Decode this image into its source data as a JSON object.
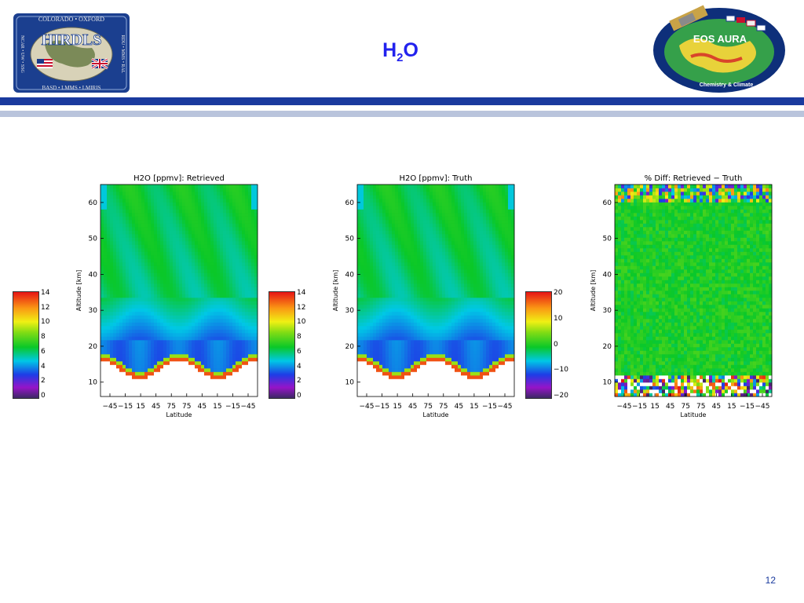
{
  "slide": {
    "title_main": "H",
    "title_sub": "2",
    "title_end": "O",
    "page_number": "12"
  },
  "logos": {
    "hirdls": {
      "name": "HIRDLS",
      "top_text": "COLORADO • OXFORD",
      "bottom_text": "BASD • LMMS • LMIRIS",
      "left_text": "NCAR • UW • SSG",
      "right_text": "RDU • MMS • RAL"
    },
    "aura": {
      "name": "EOS AURA",
      "subtitle": "Chemistry & Climate"
    }
  },
  "colors": {
    "rule_dark": "#1a3a9e",
    "rule_light": "#b9c4dc",
    "title": "#2222ee"
  },
  "chart_data": [
    {
      "type": "heatmap",
      "title": "H2O [ppmv]: Retrieved",
      "xlabel": "Latitude",
      "ylabel": "Altitude [km]",
      "x_ticks": [
        "−45",
        "−15",
        "15",
        "45",
        "75",
        "75",
        "45",
        "15",
        "−15",
        "−45"
      ],
      "y_ticks": [
        10,
        20,
        30,
        40,
        50,
        60
      ],
      "ylim": [
        6,
        65
      ],
      "colorbar": {
        "ticks": [
          0,
          2,
          4,
          6,
          8,
          10,
          12,
          14
        ],
        "range": [
          0,
          14
        ],
        "position": "left"
      },
      "field": "h2o"
    },
    {
      "type": "heatmap",
      "title": "H2O [ppmv]: Truth",
      "xlabel": "Latitude",
      "ylabel": "Altitude [km]",
      "x_ticks": [
        "−45",
        "−15",
        "15",
        "45",
        "75",
        "75",
        "45",
        "15",
        "−15",
        "−45"
      ],
      "y_ticks": [
        10,
        20,
        30,
        40,
        50,
        60
      ],
      "ylim": [
        6,
        65
      ],
      "colorbar": {
        "ticks": [
          0,
          2,
          4,
          6,
          8,
          10,
          12,
          14
        ],
        "range": [
          0,
          14
        ],
        "position": "left"
      },
      "field": "h2o"
    },
    {
      "type": "heatmap",
      "title": "% Diff: Retrieved − Truth",
      "xlabel": "Latitude",
      "ylabel": "Altitude [km]",
      "x_ticks": [
        "−45",
        "−15",
        "15",
        "45",
        "75",
        "75",
        "45",
        "15",
        "−15",
        "−45"
      ],
      "y_ticks": [
        10,
        20,
        30,
        40,
        50,
        60
      ],
      "ylim": [
        6,
        65
      ],
      "colorbar": {
        "ticks": [
          -20,
          -10,
          0,
          10,
          20
        ],
        "range": [
          -20,
          20
        ],
        "position": "left"
      },
      "field": "diff"
    }
  ]
}
